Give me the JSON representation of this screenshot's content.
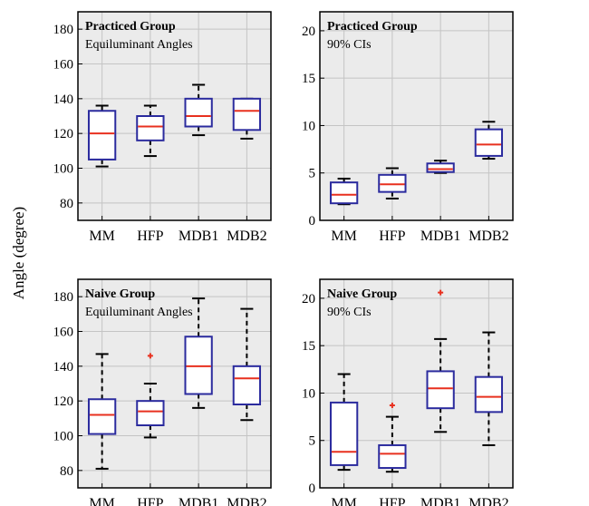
{
  "figure": {
    "ylabel": "Angle (degree)"
  },
  "colors": {
    "box": "#2b2b9e",
    "median": "#e8301f",
    "whisker": "#000000",
    "outlier": "#e8301f",
    "panel_bg": "#ebebeb",
    "grid": "#c4c4c4"
  },
  "chart_data": [
    {
      "type": "box",
      "title": "Practiced Group",
      "subtitle": "Equiluminant Angles",
      "categories": [
        "MM",
        "HFP",
        "MDB1",
        "MDB2"
      ],
      "ylim": [
        70,
        190
      ],
      "yticks": [
        80,
        100,
        120,
        140,
        160,
        180
      ],
      "grid": true,
      "boxes": [
        {
          "category": "MM",
          "min": 101,
          "q1": 105,
          "median": 120,
          "q3": 133,
          "max": 136,
          "outliers": []
        },
        {
          "category": "HFP",
          "min": 107,
          "q1": 116,
          "median": 124,
          "q3": 130,
          "max": 136,
          "outliers": []
        },
        {
          "category": "MDB1",
          "min": 119,
          "q1": 124,
          "median": 130,
          "q3": 140,
          "max": 148,
          "outliers": []
        },
        {
          "category": "MDB2",
          "min": 117,
          "q1": 122,
          "median": 133,
          "q3": 140,
          "max": 140,
          "outliers": []
        }
      ]
    },
    {
      "type": "box",
      "title": "Practiced Group",
      "subtitle": "90% CIs",
      "categories": [
        "MM",
        "HFP",
        "MDB1",
        "MDB2"
      ],
      "ylim": [
        0,
        22
      ],
      "yticks": [
        0,
        5,
        10,
        15,
        20
      ],
      "grid": true,
      "boxes": [
        {
          "category": "MM",
          "min": 1.7,
          "q1": 1.8,
          "median": 2.7,
          "q3": 4.0,
          "max": 4.4,
          "outliers": []
        },
        {
          "category": "HFP",
          "min": 2.3,
          "q1": 3.0,
          "median": 3.8,
          "q3": 4.8,
          "max": 5.5,
          "outliers": []
        },
        {
          "category": "MDB1",
          "min": 5.0,
          "q1": 5.1,
          "median": 5.4,
          "q3": 6.0,
          "max": 6.3,
          "outliers": []
        },
        {
          "category": "MDB2",
          "min": 6.5,
          "q1": 6.8,
          "median": 8.0,
          "q3": 9.6,
          "max": 10.4,
          "outliers": []
        }
      ]
    },
    {
      "type": "box",
      "title": "Naive Group",
      "subtitle": "Equiluminant Angles",
      "categories": [
        "MM",
        "HFP",
        "MDB1",
        "MDB2"
      ],
      "ylim": [
        70,
        190
      ],
      "yticks": [
        80,
        100,
        120,
        140,
        160,
        180
      ],
      "grid": true,
      "boxes": [
        {
          "category": "MM",
          "min": 81,
          "q1": 101,
          "median": 112,
          "q3": 121,
          "max": 147,
          "outliers": []
        },
        {
          "category": "HFP",
          "min": 99,
          "q1": 106,
          "median": 114,
          "q3": 120,
          "max": 130,
          "outliers": [
            146
          ]
        },
        {
          "category": "MDB1",
          "min": 116,
          "q1": 124,
          "median": 140,
          "q3": 157,
          "max": 179,
          "outliers": []
        },
        {
          "category": "MDB2",
          "min": 109,
          "q1": 118,
          "median": 133,
          "q3": 140,
          "max": 173,
          "outliers": []
        }
      ]
    },
    {
      "type": "box",
      "title": "Naive Group",
      "subtitle": "90% CIs",
      "categories": [
        "MM",
        "HFP",
        "MDB1",
        "MDB2"
      ],
      "ylim": [
        0,
        22
      ],
      "yticks": [
        0,
        5,
        10,
        15,
        20
      ],
      "grid": true,
      "boxes": [
        {
          "category": "MM",
          "min": 1.9,
          "q1": 2.4,
          "median": 3.8,
          "q3": 9.0,
          "max": 12.0,
          "outliers": []
        },
        {
          "category": "HFP",
          "min": 1.7,
          "q1": 2.1,
          "median": 3.6,
          "q3": 4.5,
          "max": 7.5,
          "outliers": [
            8.7
          ]
        },
        {
          "category": "MDB1",
          "min": 5.9,
          "q1": 8.4,
          "median": 10.5,
          "q3": 12.3,
          "max": 15.7,
          "outliers": [
            20.6
          ]
        },
        {
          "category": "MDB2",
          "min": 4.5,
          "q1": 8.0,
          "median": 9.6,
          "q3": 11.7,
          "max": 16.4,
          "outliers": []
        }
      ]
    }
  ]
}
